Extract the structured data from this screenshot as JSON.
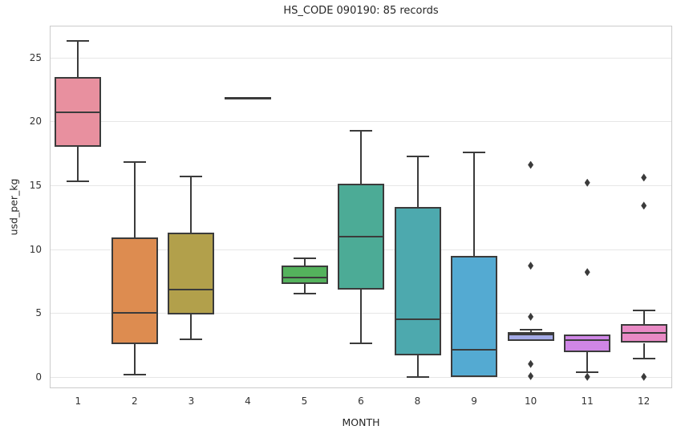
{
  "title": "HS_CODE 090190: 85 records",
  "colors": {
    "background": "#ffffff",
    "grid": "#e6e6e6",
    "spine": "#cbcbcb",
    "line": "#3b3b3b",
    "text": "#333333"
  },
  "chart_data": {
    "type": "box",
    "title": "HS_CODE 090190: 85 records",
    "xlabel": "MONTH",
    "ylabel": "usd_per_kg",
    "ylim": [
      -0.9,
      27.5
    ],
    "yticks": [
      0,
      5,
      10,
      15,
      20,
      25
    ],
    "grid": true,
    "legend": "none",
    "categories": [
      "1",
      "2",
      "3",
      "4",
      "5",
      "6",
      "8",
      "9",
      "10",
      "11",
      "12"
    ],
    "boxes": [
      {
        "month": "1",
        "color": "#e8909f",
        "whislo": 15.3,
        "q1": 18.0,
        "med": 20.7,
        "q3": 23.5,
        "whishi": 26.3,
        "fliers": []
      },
      {
        "month": "2",
        "color": "#dd8c50",
        "whislo": 0.15,
        "q1": 2.55,
        "med": 5.0,
        "q3": 10.9,
        "whishi": 16.8,
        "fliers": []
      },
      {
        "month": "3",
        "color": "#b2a04b",
        "whislo": 2.95,
        "q1": 4.9,
        "med": 6.85,
        "q3": 11.3,
        "whishi": 15.7,
        "fliers": []
      },
      {
        "month": "4",
        "color": "#8cad44",
        "whislo": 21.8,
        "q1": 21.8,
        "med": 21.8,
        "q3": 21.8,
        "whishi": 21.8,
        "fliers": []
      },
      {
        "month": "5",
        "color": "#54b25c",
        "whislo": 6.5,
        "q1": 7.25,
        "med": 7.8,
        "q3": 8.7,
        "whishi": 9.3,
        "fliers": []
      },
      {
        "month": "6",
        "color": "#4cab96",
        "whislo": 2.65,
        "q1": 6.85,
        "med": 11.0,
        "q3": 15.1,
        "whishi": 19.3,
        "fliers": []
      },
      {
        "month": "8",
        "color": "#4da9ae",
        "whislo": 0.0,
        "q1": 1.7,
        "med": 4.5,
        "q3": 13.3,
        "whishi": 17.25,
        "fliers": []
      },
      {
        "month": "9",
        "color": "#54aad2",
        "whislo": 0.0,
        "q1": 0.0,
        "med": 2.1,
        "q3": 9.45,
        "whishi": 17.6,
        "fliers": []
      },
      {
        "month": "10",
        "color": "#a4aae6",
        "whislo": 2.8,
        "q1": 2.8,
        "med": 3.3,
        "q3": 3.5,
        "whishi": 3.7,
        "fliers": [
          16.6,
          8.7,
          4.7,
          1.0,
          0.05
        ]
      },
      {
        "month": "11",
        "color": "#cf86e6",
        "whislo": 0.35,
        "q1": 1.9,
        "med": 2.9,
        "q3": 3.3,
        "whishi": 3.3,
        "fliers": [
          15.2,
          8.2,
          0.0
        ]
      },
      {
        "month": "12",
        "color": "#e98ac5",
        "whislo": 1.45,
        "q1": 2.65,
        "med": 3.45,
        "q3": 4.1,
        "whishi": 5.2,
        "fliers": [
          15.6,
          13.4,
          0.0
        ]
      }
    ]
  }
}
